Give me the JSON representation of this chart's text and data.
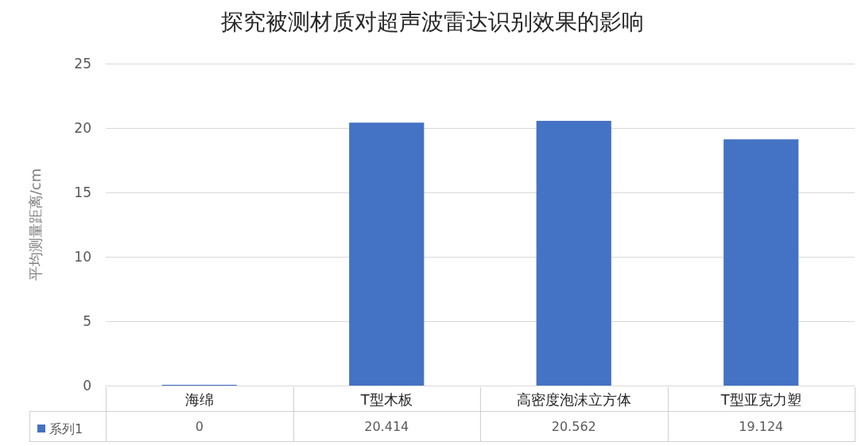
{
  "chart_data": {
    "type": "bar",
    "title": "探究被测材质对超声波雷达识别效果的影响",
    "ylabel": "平均测量距离/cm",
    "categories": [
      "海绵",
      "T型木板",
      "高密度泡沫立方体",
      "T型亚克力塑"
    ],
    "series": [
      {
        "name": "系列1",
        "color": "#4472c4",
        "values": [
          0,
          20.414,
          20.562,
          19.124
        ]
      }
    ],
    "ylim": [
      0,
      25
    ],
    "yticks": [
      0,
      5,
      10,
      15,
      20,
      25
    ],
    "grid": "y",
    "legend": "bottom left",
    "data_labels": true
  }
}
